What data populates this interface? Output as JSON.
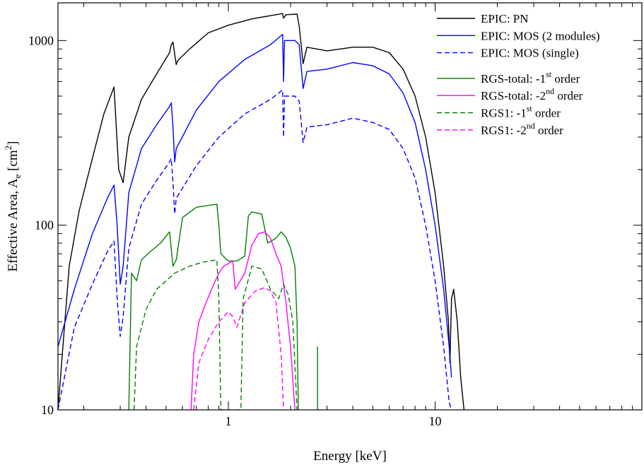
{
  "chart_data": {
    "type": "line",
    "xlabel": "Energy [keV]",
    "ylabel_parts": {
      "main": "Effective Area, A",
      "sub": "e",
      "unit_open": " [cm",
      "sup": "2",
      "unit_close": "]"
    },
    "xscale": "log",
    "yscale": "log",
    "xlim": [
      0.15,
      100
    ],
    "ylim": [
      10,
      1600
    ],
    "xticks": [
      {
        "value": 1,
        "label": "1"
      },
      {
        "value": 10,
        "label": "10"
      }
    ],
    "yticks": [
      {
        "value": 10,
        "label": "10"
      },
      {
        "value": 100,
        "label": "100"
      },
      {
        "value": 1000,
        "label": "1000"
      }
    ],
    "grid": false,
    "legend_position": "top-right",
    "series": [
      {
        "name": "EPIC: PN",
        "label_main": "EPIC: PN",
        "label_sup": "",
        "label_tail": "",
        "color": "#000000",
        "dash": "solid",
        "points": [
          [
            0.15,
            10
          ],
          [
            0.17,
            60
          ],
          [
            0.19,
            120
          ],
          [
            0.22,
            230
          ],
          [
            0.25,
            400
          ],
          [
            0.28,
            560
          ],
          [
            0.295,
            200
          ],
          [
            0.31,
            170
          ],
          [
            0.33,
            300
          ],
          [
            0.38,
            480
          ],
          [
            0.45,
            660
          ],
          [
            0.52,
            860
          ],
          [
            0.53,
            950
          ],
          [
            0.54,
            980
          ],
          [
            0.56,
            740
          ],
          [
            0.57,
            780
          ],
          [
            0.65,
            900
          ],
          [
            0.8,
            1100
          ],
          [
            1.0,
            1210
          ],
          [
            1.3,
            1310
          ],
          [
            1.7,
            1380
          ],
          [
            1.83,
            1400
          ],
          [
            1.85,
            1320
          ],
          [
            1.9,
            1380
          ],
          [
            2.15,
            1390
          ],
          [
            2.2,
            1200
          ],
          [
            2.3,
            750
          ],
          [
            2.4,
            920
          ],
          [
            3.0,
            880
          ],
          [
            4.0,
            920
          ],
          [
            5.0,
            920
          ],
          [
            6.0,
            860
          ],
          [
            7.0,
            700
          ],
          [
            8.0,
            500
          ],
          [
            9.0,
            300
          ],
          [
            10.0,
            150
          ],
          [
            11.0,
            60
          ],
          [
            11.6,
            30
          ],
          [
            11.8,
            18
          ],
          [
            12.0,
            40
          ],
          [
            12.3,
            45
          ],
          [
            12.8,
            30
          ],
          [
            13.3,
            15
          ],
          [
            13.8,
            10
          ]
        ]
      },
      {
        "name": "EPIC: MOS (2 modules)",
        "label_main": "EPIC: MOS (2 modules)",
        "label_sup": "",
        "label_tail": "",
        "color": "#0000ff",
        "dash": "solid",
        "points": [
          [
            0.15,
            22
          ],
          [
            0.18,
            45
          ],
          [
            0.22,
            90
          ],
          [
            0.26,
            140
          ],
          [
            0.28,
            165
          ],
          [
            0.29,
            100
          ],
          [
            0.3,
            48
          ],
          [
            0.31,
            60
          ],
          [
            0.33,
            150
          ],
          [
            0.38,
            260
          ],
          [
            0.45,
            350
          ],
          [
            0.52,
            440
          ],
          [
            0.53,
            460
          ],
          [
            0.54,
            340
          ],
          [
            0.55,
            220
          ],
          [
            0.56,
            260
          ],
          [
            0.7,
            420
          ],
          [
            0.9,
            600
          ],
          [
            1.2,
            790
          ],
          [
            1.6,
            950
          ],
          [
            1.83,
            1080
          ],
          [
            1.85,
            600
          ],
          [
            1.87,
            1000
          ],
          [
            2.1,
            1000
          ],
          [
            2.2,
            950
          ],
          [
            2.3,
            550
          ],
          [
            2.4,
            680
          ],
          [
            3.0,
            700
          ],
          [
            4.0,
            760
          ],
          [
            5.0,
            730
          ],
          [
            6.0,
            660
          ],
          [
            7.0,
            520
          ],
          [
            8.0,
            360
          ],
          [
            9.0,
            200
          ],
          [
            10.0,
            100
          ],
          [
            11.0,
            45
          ],
          [
            11.7,
            22
          ],
          [
            12.0,
            15
          ]
        ]
      },
      {
        "name": "EPIC: MOS (single)",
        "label_main": "EPIC: MOS (single)",
        "label_sup": "",
        "label_tail": "",
        "color": "#0000ff",
        "dash": "dashed",
        "points": [
          [
            0.15,
            10
          ],
          [
            0.18,
            28
          ],
          [
            0.22,
            48
          ],
          [
            0.26,
            72
          ],
          [
            0.28,
            82
          ],
          [
            0.29,
            40
          ],
          [
            0.3,
            25
          ],
          [
            0.31,
            32
          ],
          [
            0.33,
            75
          ],
          [
            0.38,
            130
          ],
          [
            0.45,
            175
          ],
          [
            0.52,
            220
          ],
          [
            0.53,
            230
          ],
          [
            0.54,
            170
          ],
          [
            0.55,
            115
          ],
          [
            0.56,
            140
          ],
          [
            0.7,
            210
          ],
          [
            0.9,
            300
          ],
          [
            1.2,
            400
          ],
          [
            1.6,
            480
          ],
          [
            1.83,
            540
          ],
          [
            1.85,
            300
          ],
          [
            1.87,
            500
          ],
          [
            2.1,
            500
          ],
          [
            2.2,
            470
          ],
          [
            2.3,
            280
          ],
          [
            2.4,
            340
          ],
          [
            3.0,
            350
          ],
          [
            4.0,
            380
          ],
          [
            5.0,
            360
          ],
          [
            6.0,
            330
          ],
          [
            7.0,
            260
          ],
          [
            8.0,
            180
          ],
          [
            9.0,
            100
          ],
          [
            10.0,
            50
          ],
          [
            11.0,
            22
          ],
          [
            11.7,
            11
          ],
          [
            12.0,
            10
          ]
        ]
      },
      {
        "name": "RGS-total: -1st order",
        "label_main": "RGS-total: -1",
        "label_sup": "st",
        "label_tail": " order",
        "color": "#008000",
        "dash": "solid",
        "points": [
          [
            0.33,
            10
          ],
          [
            0.34,
            55
          ],
          [
            0.36,
            50
          ],
          [
            0.38,
            65
          ],
          [
            0.42,
            72
          ],
          [
            0.47,
            80
          ],
          [
            0.52,
            92
          ],
          [
            0.54,
            60
          ],
          [
            0.56,
            65
          ],
          [
            0.6,
            110
          ],
          [
            0.7,
            125
          ],
          [
            0.8,
            128
          ],
          [
            0.88,
            130
          ],
          [
            0.9,
            100
          ],
          [
            0.92,
            70
          ],
          [
            1.0,
            64
          ],
          [
            1.1,
            64
          ],
          [
            1.2,
            68
          ],
          [
            1.25,
            112
          ],
          [
            1.3,
            118
          ],
          [
            1.45,
            115
          ],
          [
            1.55,
            80
          ],
          [
            1.7,
            85
          ],
          [
            1.8,
            92
          ],
          [
            1.9,
            86
          ],
          [
            2.0,
            75
          ],
          [
            2.1,
            60
          ],
          [
            2.15,
            30
          ],
          [
            2.18,
            10
          ]
        ]
      },
      {
        "name": "RGS-total: -2nd order",
        "label_main": "RGS-total: -2",
        "label_sup": "nd",
        "label_tail": " order",
        "color": "#ff00ff",
        "dash": "solid",
        "points": [
          [
            0.66,
            10
          ],
          [
            0.68,
            20
          ],
          [
            0.72,
            30
          ],
          [
            0.78,
            38
          ],
          [
            0.85,
            48
          ],
          [
            0.9,
            55
          ],
          [
            0.95,
            60
          ],
          [
            1.0,
            62
          ],
          [
            1.05,
            64
          ],
          [
            1.08,
            45
          ],
          [
            1.2,
            55
          ],
          [
            1.3,
            78
          ],
          [
            1.4,
            90
          ],
          [
            1.5,
            92
          ],
          [
            1.6,
            85
          ],
          [
            1.7,
            70
          ],
          [
            1.8,
            60
          ],
          [
            1.85,
            48
          ],
          [
            1.9,
            38
          ],
          [
            2.0,
            22
          ],
          [
            2.1,
            10
          ]
        ]
      },
      {
        "name": "RGS1: -1st order",
        "label_main": "RGS1: -1",
        "label_sup": "st",
        "label_tail": " order",
        "color": "#008000",
        "dash": "dashed",
        "points": [
          [
            0.35,
            10
          ],
          [
            0.36,
            22
          ],
          [
            0.4,
            35
          ],
          [
            0.45,
            45
          ],
          [
            0.55,
            55
          ],
          [
            0.65,
            60
          ],
          [
            0.75,
            63
          ],
          [
            0.88,
            65
          ],
          [
            0.9,
            40
          ],
          [
            0.92,
            10
          ],
          [
            1.15,
            10
          ],
          [
            1.18,
            40
          ],
          [
            1.3,
            60
          ],
          [
            1.45,
            58
          ],
          [
            1.6,
            45
          ],
          [
            1.75,
            40
          ],
          [
            1.85,
            48
          ],
          [
            1.95,
            42
          ],
          [
            2.05,
            30
          ],
          [
            2.15,
            10
          ]
        ]
      },
      {
        "name": "RGS1: -2nd order",
        "label_main": "RGS1: -2",
        "label_sup": "nd",
        "label_tail": " order",
        "color": "#ff00ff",
        "dash": "dashed",
        "points": [
          [
            0.68,
            10
          ],
          [
            0.72,
            18
          ],
          [
            0.8,
            24
          ],
          [
            0.9,
            30
          ],
          [
            1.0,
            34
          ],
          [
            1.05,
            32
          ],
          [
            1.1,
            28
          ],
          [
            1.2,
            38
          ],
          [
            1.35,
            44
          ],
          [
            1.5,
            46
          ],
          [
            1.6,
            44
          ],
          [
            1.7,
            38
          ],
          [
            1.8,
            20
          ],
          [
            1.85,
            10
          ]
        ]
      }
    ],
    "extra_marks": [
      {
        "name": "green-spike",
        "color": "#008000",
        "points": [
          [
            2.7,
            10
          ],
          [
            2.7,
            22
          ]
        ]
      }
    ]
  }
}
